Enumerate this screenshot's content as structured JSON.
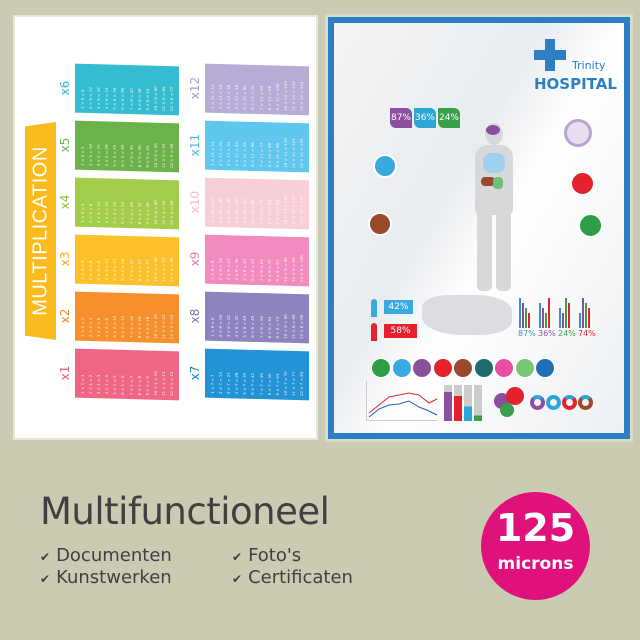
{
  "left_poster": {
    "title": "MULTIPLICATION",
    "tables": [
      {
        "label": "x6",
        "factor": 6,
        "color": "#34bdd1",
        "label_color": "#2fb7cc"
      },
      {
        "label": "x5",
        "factor": 5,
        "color": "#6cb24a",
        "label_color": "#6cb24a"
      },
      {
        "label": "x4",
        "factor": 4,
        "color": "#a3cc4a",
        "label_color": "#8fbf3b"
      },
      {
        "label": "x3",
        "factor": 3,
        "color": "#fcc12a",
        "label_color": "#f3b21b"
      },
      {
        "label": "x2",
        "factor": 2,
        "color": "#f68f2c",
        "label_color": "#f08526"
      },
      {
        "label": "x1",
        "factor": 1,
        "color": "#ee6683",
        "label_color": "#e85a78"
      },
      {
        "label": "x12",
        "factor": 12,
        "color": "#b8abd5",
        "label_color": "#a99cc9"
      },
      {
        "label": "x11",
        "factor": 11,
        "color": "#5fc7ee",
        "label_color": "#4bb9e4"
      },
      {
        "label": "x10",
        "factor": 10,
        "color": "#f8cfd6",
        "label_color": "#f2bcc6"
      },
      {
        "label": "x9",
        "factor": 9,
        "color": "#f18bbd",
        "label_color": "#e978ad"
      },
      {
        "label": "x8",
        "factor": 8,
        "color": "#8e82bf",
        "label_color": "#7f73b4"
      },
      {
        "label": "x7",
        "factor": 7,
        "color": "#2293d6",
        "label_color": "#1f88c9"
      }
    ]
  },
  "right_poster": {
    "brand_top": "Trinity",
    "brand_main": "HOSPITAL",
    "accent": "#2b7fc2",
    "top_stats": [
      {
        "value": "87%",
        "color": "#8a4f9e"
      },
      {
        "value": "36%",
        "color": "#2aa6d9"
      },
      {
        "value": "24%",
        "color": "#38a04b"
      }
    ],
    "gender": [
      {
        "icon": "male-icon",
        "value": "42%",
        "color": "#3aa9df"
      },
      {
        "icon": "female-icon",
        "value": "58%",
        "color": "#e3222d"
      }
    ],
    "bar_stats": [
      {
        "value": "87%",
        "color": "#3a8fd0"
      },
      {
        "value": "36%",
        "color": "#8a4f9e"
      },
      {
        "value": "24%",
        "color": "#38a04b"
      },
      {
        "value": "74%",
        "color": "#e3222d"
      }
    ],
    "organ_icons": [
      {
        "icon": "stomach-icon",
        "color": "#2e9d48"
      },
      {
        "icon": "lungs-icon",
        "color": "#3aa9df"
      },
      {
        "icon": "brain-icon",
        "color": "#8a4f9e"
      },
      {
        "icon": "heart-icon",
        "color": "#e3222d"
      },
      {
        "icon": "liver-icon",
        "color": "#9a4a2c"
      },
      {
        "icon": "tooth-icon",
        "color": "#1f6a6a"
      },
      {
        "icon": "heart-pink-icon",
        "color": "#ea4fa3"
      },
      {
        "icon": "sleep-icon",
        "color": "#7cc576"
      },
      {
        "icon": "apple-icon",
        "color": "#1f6fb5"
      }
    ]
  },
  "footer": {
    "title": "Multifunctioneel",
    "features": [
      "Documenten",
      "Kunstwerken",
      "Foto's",
      "Certificaten"
    ],
    "check_icon": "check-icon",
    "badge": {
      "number": "125",
      "unit": "microns",
      "color": "#e0117a"
    }
  }
}
